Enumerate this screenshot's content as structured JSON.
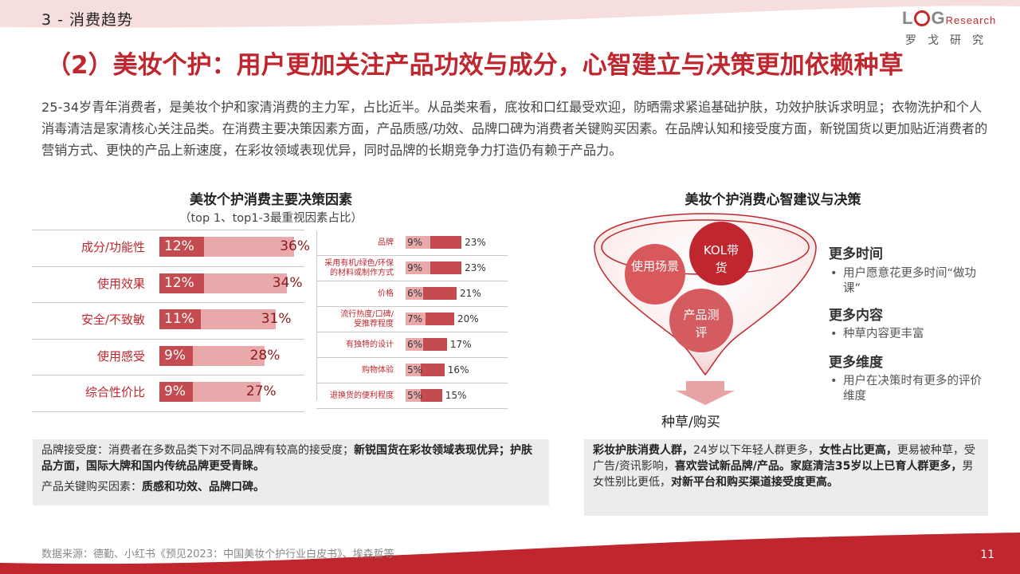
{
  "header": {
    "section": "3 - 消费趋势",
    "title": "（2）美妆个护：用户更加关注产品功效与成分，心智建立与决策更加依赖种草",
    "logo_word_prefix": "L",
    "logo_word_g": "G",
    "logo_word_suffix": "esearch",
    "logo_sub": "罗戈研究"
  },
  "intro": "25-34岁青年消费者，是美妆个护和家清消费的主力军，占比近半。从品类来看，底妆和口红最受欢迎，防晒需求紧追基础护肤，功效护肤诉求明显；衣物洗护和个人消毒清洁是家清核心关注品类。在消费主要决策因素方面，产品质感/功效、品牌口碑为消费者关键购买因素。在品牌认知和接受度方面，新锐国货以更加贴近消费者的营销方式、更快的产品上新速度，在彩妆领域表现优异，同时品牌的长期竞争力打造仍有赖于产品力。",
  "left_chart": {
    "title": "美妆个护消费主要决策因素",
    "subtitle": "（top 1、top1-3最重视因素占比）"
  },
  "chart_data": [
    {
      "type": "bar",
      "categories": [
        "成分/功能性",
        "使用效果",
        "安全/不致敏",
        "使用感受",
        "综合性价比"
      ],
      "series": [
        {
          "name": "top 1",
          "values": [
            12,
            12,
            11,
            9,
            9
          ],
          "labels": [
            "12%",
            "12%",
            "11%",
            "9%",
            "9%"
          ]
        },
        {
          "name": "top1-3",
          "values": [
            36,
            34,
            31,
            28,
            27
          ],
          "labels": [
            "36%",
            "34%",
            "31%",
            "28%",
            "27%"
          ]
        }
      ],
      "orientation": "horizontal",
      "colors": {
        "top1": "#c44b4f",
        "top3": "#e9a8aa"
      }
    },
    {
      "type": "bar",
      "categories": [
        "品牌",
        "采用有机/绿色/环保的材料或制作方式",
        "价格",
        "流行热度/口碑/受推荐程度",
        "有独特的设计",
        "购物体验",
        "退换货的便利程度"
      ],
      "category_lines": [
        [
          "品牌"
        ],
        [
          "采用有机/绿色/环保",
          "的材料或制作方式"
        ],
        [
          "价格"
        ],
        [
          "流行热度/口碑/",
          "受推荐程度"
        ],
        [
          "有独特的设计"
        ],
        [
          "购物体验"
        ],
        [
          "退换货的便利程度"
        ]
      ],
      "series": [
        {
          "name": "top 1",
          "values": [
            9,
            9,
            6,
            7,
            6,
            5,
            5
          ],
          "labels": [
            "9%",
            "9%",
            "6%",
            "7%",
            "6%",
            "5%",
            "5%"
          ]
        },
        {
          "name": "top1-3",
          "values": [
            23,
            23,
            21,
            20,
            17,
            16,
            15
          ],
          "labels": [
            "23%",
            "23%",
            "21%",
            "20%",
            "17%",
            "16%",
            "15%"
          ]
        }
      ],
      "orientation": "horizontal",
      "colors": {
        "top1": "#e9a8aa",
        "top3": "#c44b4f"
      }
    }
  ],
  "funnel": {
    "title": "美妆个护消费心智建议与决策",
    "circles": [
      "使用场景",
      "KOL带货",
      "产品测评"
    ],
    "bottom_label": "种草/购买",
    "colors": {
      "ring": "#c0262d",
      "circle_dark": "#c0262d",
      "circle_light": "#d9585c"
    }
  },
  "side_points": [
    {
      "heading": "更多时间",
      "item": "用户愿意花更多时间“做功课”"
    },
    {
      "heading": "更多内容",
      "item": "种草内容更丰富"
    },
    {
      "heading": "更多维度",
      "item": "用户在决策时有更多的评价维度"
    }
  ],
  "notes": {
    "left_line1_a": "品牌接受度：消费者在多数品类下对不同品牌有较高的接受度；",
    "left_line1_b": "新锐国货在彩妆领域表现优异；护肤品方面，国际大牌和国内传统品牌更受青睐。",
    "left_line2_a": "产品关键购买因素：",
    "left_line2_b": "质感和功效、品牌口碑。",
    "right_a": "彩妆护肤消费人群，",
    "right_b": "24岁以下年轻人群更多，",
    "right_c": "女性占比更高，",
    "right_d": "更易被种草，受广告/资讯影响，",
    "right_e": "喜欢尝试新品牌/产品。家庭清洁35岁以上已育人群更多，",
    "right_f": "男女性别比更低，",
    "right_g": "对新平台和购买渠道接受度更高。"
  },
  "footer": {
    "source": "数据来源：德勤、小红书《预见2023：中国美妆个护行业白皮书》、埃森哲等",
    "page": "11"
  },
  "colors": {
    "brand_red": "#c0262d",
    "band_pink": "#f4d6d6"
  }
}
